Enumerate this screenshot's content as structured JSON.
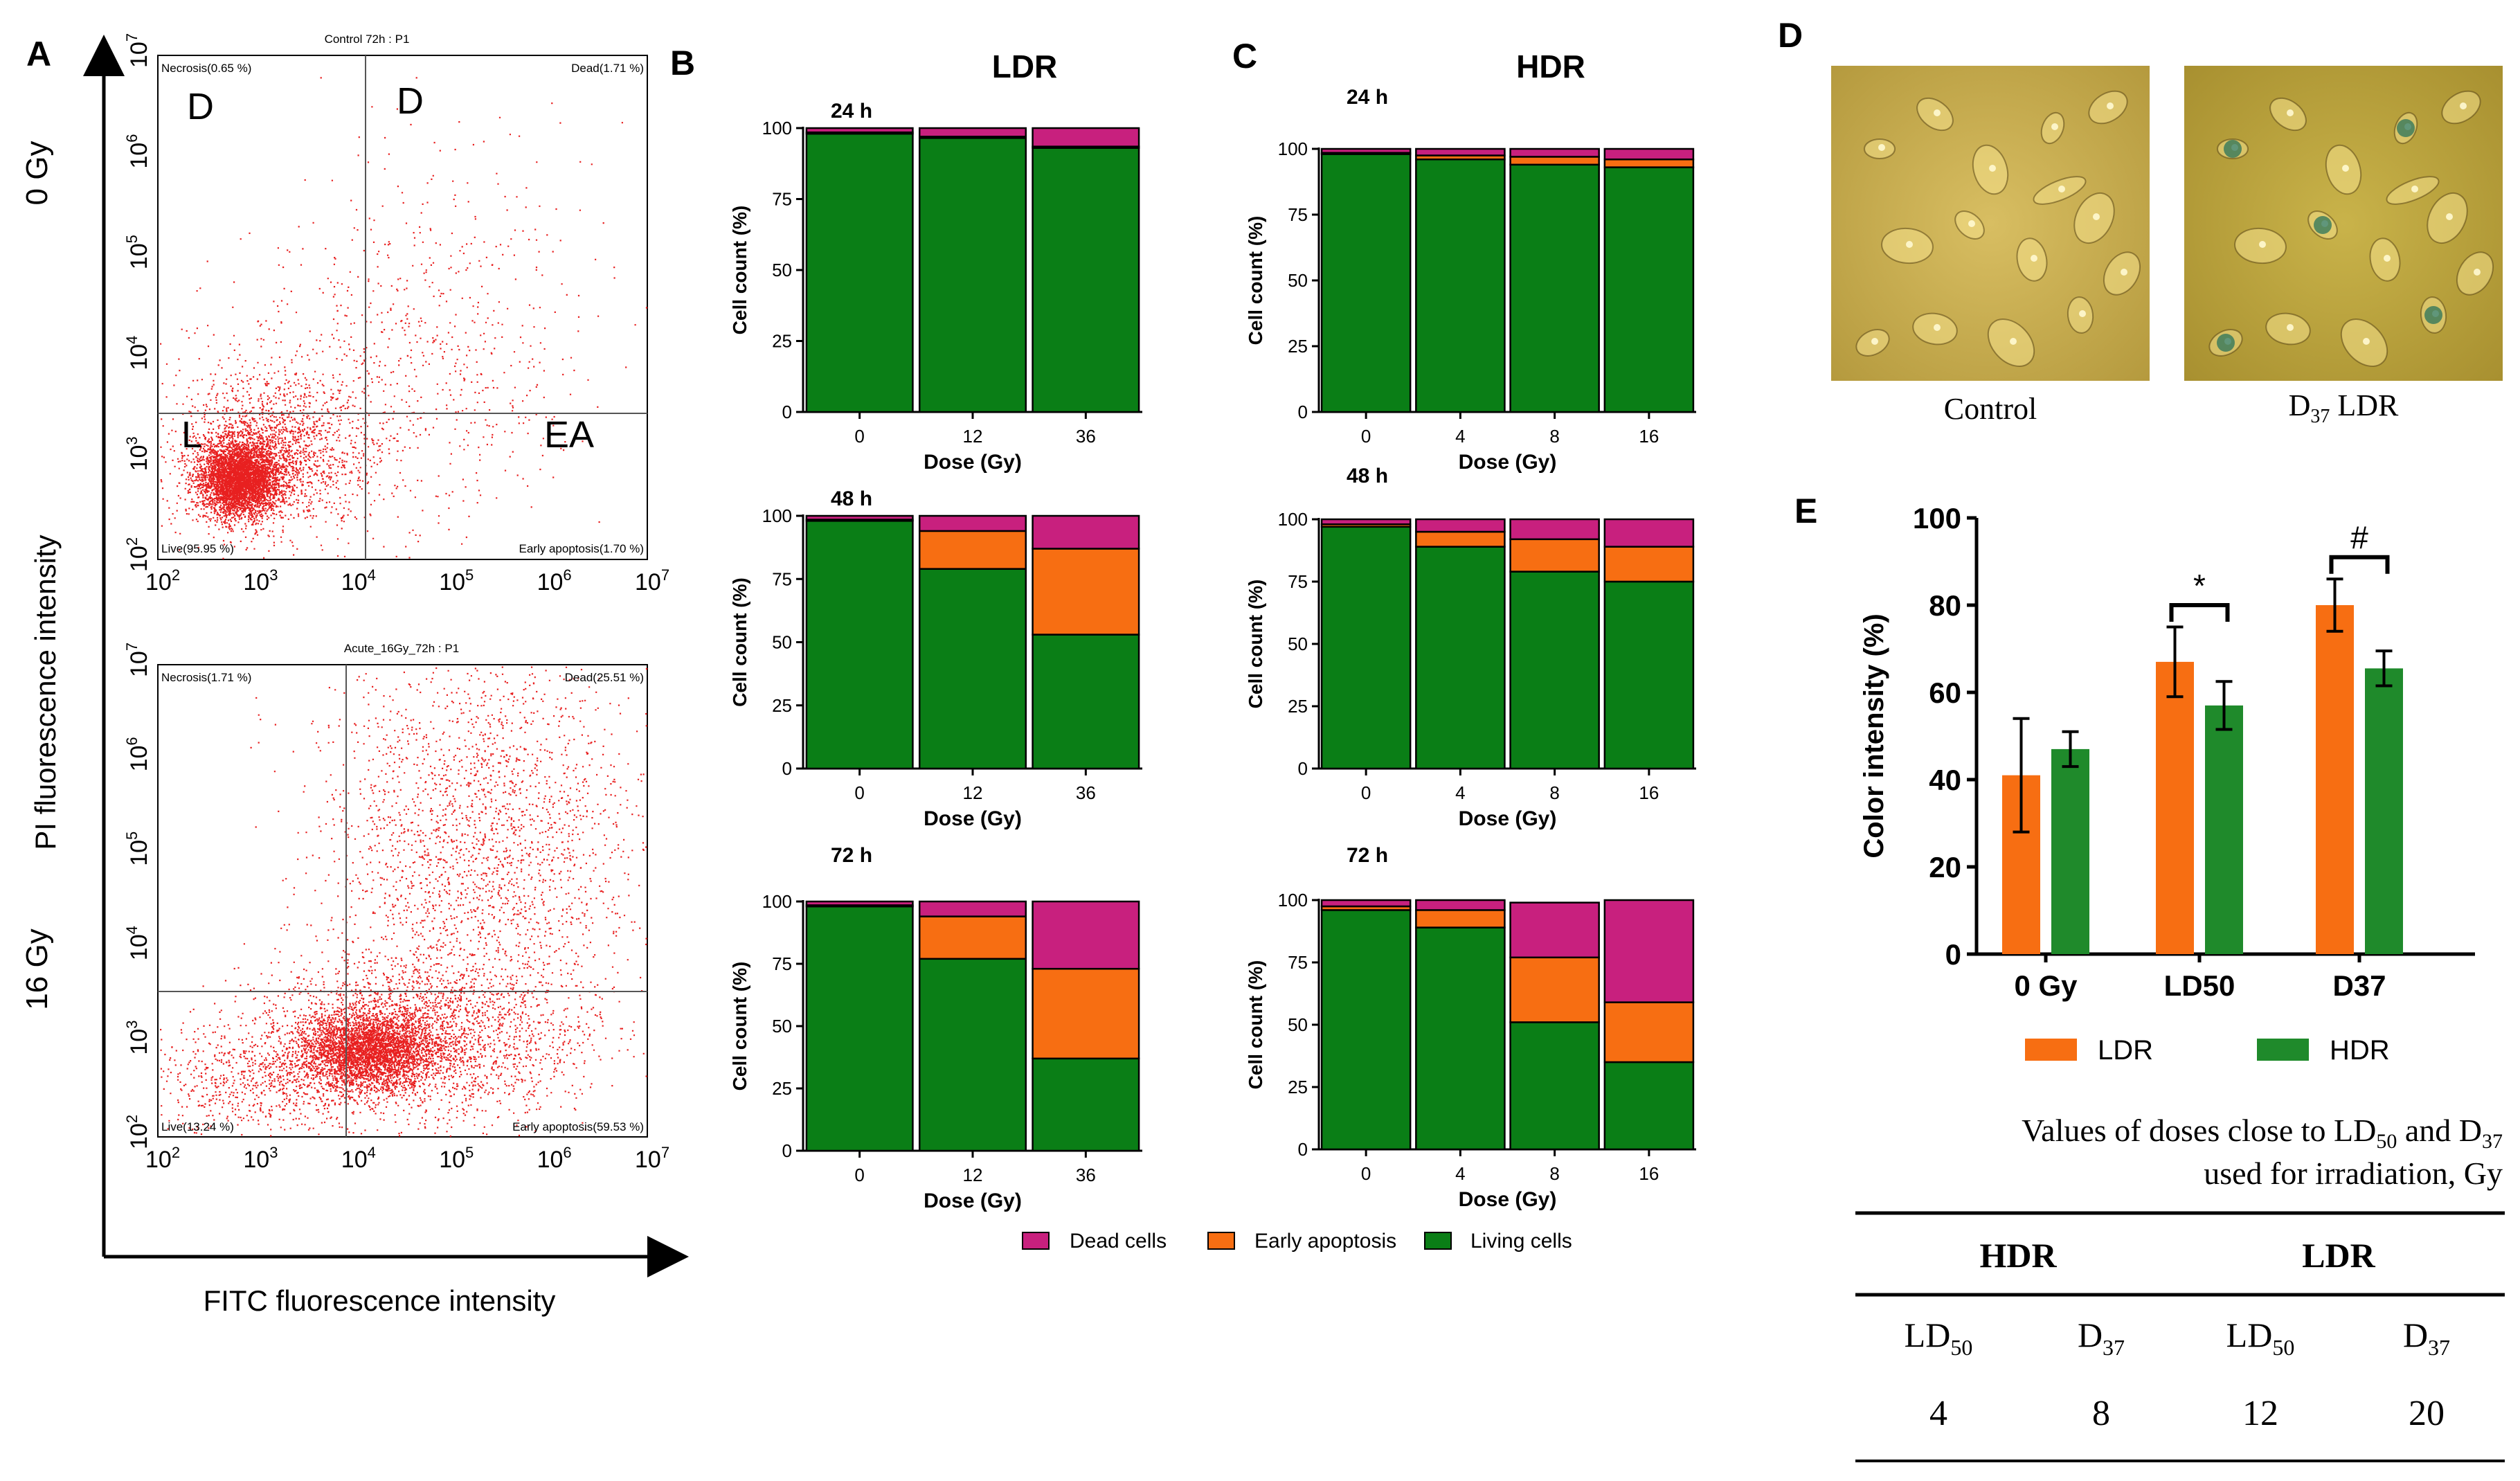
{
  "colors": {
    "dead": "#c8207e",
    "early": "#f76e12",
    "living": "#0a7e16",
    "ldr_bar": "#f76e12",
    "hdr_bar": "#1f8a2b",
    "scatter": "#e82020",
    "micro_bg": "#c8a842"
  },
  "panel_letters": {
    "A": "A",
    "B": "B",
    "C": "C",
    "D": "D",
    "E": "E"
  },
  "panel_a": {
    "y_axis_label": "PI fluorescence intensity",
    "x_axis_label": "FITC  fluorescence intensity",
    "plots": [
      {
        "row_label": "0 Gy",
        "title": "Control 72h : P1",
        "q_necrosis": "Necrosis(0.65 %)",
        "q_dead": "Dead(1.71 %)",
        "q_live": "Live(95.95 %)",
        "q_early": "Early apoptosis(1.70 %)",
        "big_tl": "D",
        "big_tr": "D",
        "big_bl": "L",
        "big_br": "EA"
      },
      {
        "row_label": "16 Gy",
        "title": "Acute_16Gy_72h : P1",
        "q_necrosis": "Necrosis(1.71 %)",
        "q_dead": "Dead(25.51 %)",
        "q_live": "Live(13.24 %)",
        "q_early": "Early apoptosis(59.53 %)"
      }
    ],
    "tick_labels": [
      "10",
      "10",
      "10",
      "10",
      "10",
      "10"
    ],
    "tick_exponents": [
      "2",
      "3",
      "4",
      "5",
      "6",
      "7"
    ]
  },
  "panel_b": {
    "title": "LDR"
  },
  "panel_c": {
    "title": "HDR"
  },
  "legend": {
    "dead": "Dead cells",
    "early": "Early apoptosis",
    "living": "Living cells"
  },
  "panel_d": {
    "label_control": "Control",
    "label_d37_main": "D",
    "label_d37_sub": "37",
    "label_d37_rest": " LDR"
  },
  "panel_e_table": {
    "caption_line1_pre": "Values of doses close to LD",
    "caption_line1_sub1": "50",
    "caption_line1_mid": " and D",
    "caption_line1_sub2": "37",
    "caption_line2": "used for irradiation,  Gy",
    "group_hdr": "HDR",
    "group_ldr": "LDR",
    "col_headers": [
      {
        "main": "LD",
        "sub": "50"
      },
      {
        "main": "D",
        "sub": "37"
      },
      {
        "main": "LD",
        "sub": "50"
      },
      {
        "main": "D",
        "sub": "37"
      }
    ],
    "values": [
      "4",
      "8",
      "12",
      "20"
    ]
  },
  "chart_data": [
    {
      "id": "ldr-24h",
      "type": "bar",
      "stacked": true,
      "title": "LDR",
      "subtitle": "24 h",
      "xlabel": "Dose (Gy)",
      "ylabel": "Cell count (%)",
      "ylim": [
        0,
        100
      ],
      "yticks": [
        "0",
        "25",
        "50",
        "75",
        "100"
      ],
      "categories": [
        "0",
        "12",
        "36"
      ],
      "series": [
        {
          "name": "Living cells",
          "values": [
            98,
            96.5,
            93
          ]
        },
        {
          "name": "Early apoptosis",
          "values": [
            0.5,
            0.5,
            0.5
          ]
        },
        {
          "name": "Dead cells",
          "values": [
            1.5,
            3,
            6.5
          ]
        }
      ]
    },
    {
      "id": "ldr-48h",
      "type": "bar",
      "stacked": true,
      "subtitle": "48 h",
      "xlabel": "Dose (Gy)",
      "ylabel": "Cell count (%)",
      "ylim": [
        0,
        100
      ],
      "yticks": [
        "0",
        "25",
        "50",
        "75",
        "100"
      ],
      "categories": [
        "0",
        "12",
        "36"
      ],
      "series": [
        {
          "name": "Living cells",
          "values": [
            98,
            79,
            53
          ]
        },
        {
          "name": "Early apoptosis",
          "values": [
            0.5,
            15,
            34
          ]
        },
        {
          "name": "Dead cells",
          "values": [
            1.5,
            6,
            13
          ]
        }
      ]
    },
    {
      "id": "ldr-72h",
      "type": "bar",
      "stacked": true,
      "subtitle": "72 h",
      "xlabel": "Dose (Gy)",
      "ylabel": "Cell count (%)",
      "ylim": [
        0,
        100
      ],
      "yticks": [
        "0",
        "25",
        "50",
        "75",
        "100"
      ],
      "categories": [
        "0",
        "12",
        "36"
      ],
      "series": [
        {
          "name": "Living cells",
          "values": [
            98,
            77,
            37
          ]
        },
        {
          "name": "Early apoptosis",
          "values": [
            0.5,
            17,
            36
          ]
        },
        {
          "name": "Dead cells",
          "values": [
            1.5,
            6,
            27
          ]
        }
      ]
    },
    {
      "id": "hdr-24h",
      "type": "bar",
      "stacked": true,
      "title": "HDR",
      "subtitle": "24 h",
      "xlabel": "Dose (Gy)",
      "ylabel": "Cell count (%)",
      "ylim": [
        0,
        100
      ],
      "yticks": [
        "0",
        "25",
        "50",
        "75",
        "100"
      ],
      "categories": [
        "0",
        "4",
        "8",
        "16"
      ],
      "series": [
        {
          "name": "Living cells",
          "values": [
            98,
            96,
            94,
            93
          ]
        },
        {
          "name": "Early apoptosis",
          "values": [
            0.5,
            1.5,
            3,
            3
          ]
        },
        {
          "name": "Dead cells",
          "values": [
            1.5,
            2.5,
            3,
            4
          ]
        }
      ]
    },
    {
      "id": "hdr-48h",
      "type": "bar",
      "stacked": true,
      "subtitle": "48 h",
      "xlabel": "Dose (Gy)",
      "ylabel": "Cell count (%)",
      "ylim": [
        0,
        100
      ],
      "yticks": [
        "0",
        "25",
        "50",
        "75",
        "100"
      ],
      "categories": [
        "0",
        "4",
        "8",
        "16"
      ],
      "series": [
        {
          "name": "Living cells",
          "values": [
            97,
            89,
            79,
            75
          ]
        },
        {
          "name": "Early apoptosis",
          "values": [
            1,
            6,
            13,
            14
          ]
        },
        {
          "name": "Dead cells",
          "values": [
            2,
            5,
            8,
            11
          ]
        }
      ]
    },
    {
      "id": "hdr-72h",
      "type": "bar",
      "stacked": true,
      "subtitle": "72 h",
      "xlabel": "Dose (Gy)",
      "ylabel": "Cell count (%)",
      "ylim": [
        0,
        100
      ],
      "yticks": [
        "0",
        "25",
        "50",
        "75",
        "100"
      ],
      "categories": [
        "0",
        "4",
        "8",
        "16"
      ],
      "series": [
        {
          "name": "Living cells",
          "values": [
            96,
            89,
            51,
            35
          ]
        },
        {
          "name": "Early apoptosis",
          "values": [
            1.5,
            7,
            26,
            24
          ]
        },
        {
          "name": "Dead cells",
          "values": [
            2.5,
            4,
            22,
            41
          ]
        }
      ]
    },
    {
      "id": "color-intensity",
      "type": "bar",
      "title": "",
      "xlabel": "",
      "ylabel": "Color intensity (%)",
      "ylim": [
        0,
        100
      ],
      "yticks": [
        "0",
        "20",
        "40",
        "60",
        "80",
        "100"
      ],
      "categories": [
        "0 Gy",
        "LD50",
        "D37"
      ],
      "series": [
        {
          "name": "LDR",
          "values": [
            41,
            67,
            80
          ],
          "errors": [
            13,
            8,
            6
          ]
        },
        {
          "name": "HDR",
          "values": [
            47,
            57,
            65.5
          ],
          "errors": [
            4,
            5.5,
            4
          ]
        }
      ],
      "significance": [
        "*",
        "#"
      ]
    }
  ]
}
